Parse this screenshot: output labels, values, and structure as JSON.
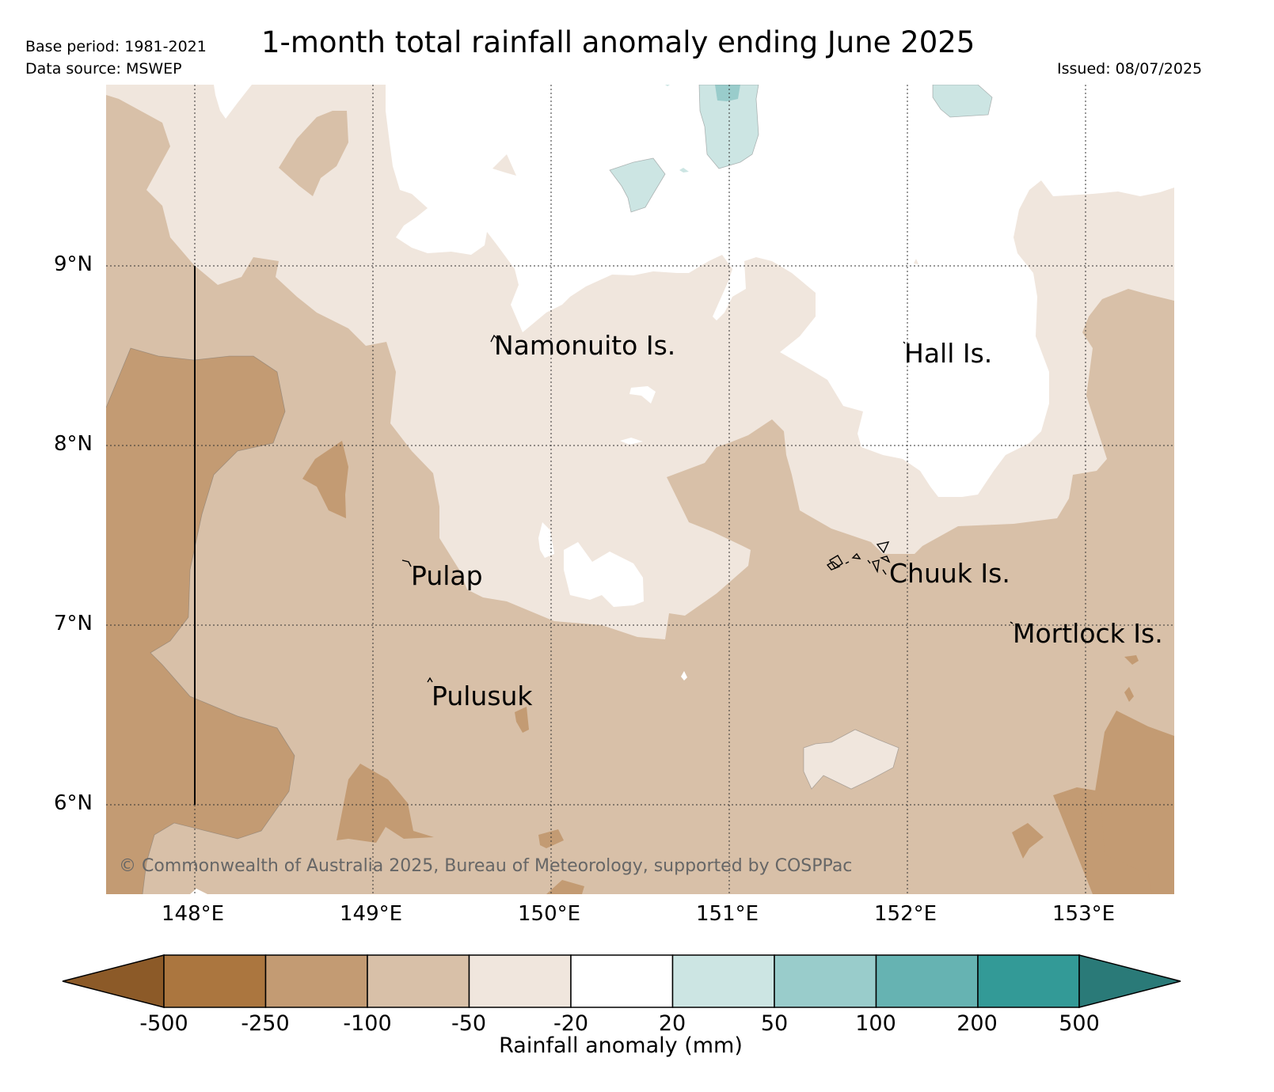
{
  "header": {
    "base_period": "Base period: 1981-2021",
    "data_source": "Data source: MSWEP",
    "title": "1-month total rainfall anomaly ending June 2025",
    "issued": "Issued: 08/07/2025"
  },
  "map": {
    "lon_labels": [
      "148°E",
      "149°E",
      "150°E",
      "151°E",
      "152°E",
      "153°E"
    ],
    "lat_labels": [
      "9°N",
      "8°N",
      "7°N",
      "6°N"
    ],
    "places": [
      {
        "name": "Namonuito Is."
      },
      {
        "name": "Hall Is."
      },
      {
        "name": "Pulap"
      },
      {
        "name": "Chuuk Is."
      },
      {
        "name": "Mortlock Is."
      },
      {
        "name": "Pulusuk"
      }
    ],
    "copyright": "© Commonwealth of Australia 2025, Bureau of Meteorology, supported by COSPPac"
  },
  "colorbar": {
    "label": "Rainfall anomaly (mm)",
    "ticks": [
      "-500",
      "-250",
      "-100",
      "-50",
      "-20",
      "20",
      "50",
      "100",
      "200",
      "500"
    ],
    "colors": {
      "below_-500": "#8c5a28",
      "-500_-250": "#ab763f",
      "-250_-100": "#c39b73",
      "-100_-50": "#d8c0a8",
      "-50_-20": "#f0e6dd",
      "-20_20": "#ffffff",
      "20_50": "#cce5e3",
      "50_100": "#99cccb",
      "100_200": "#66b3b2",
      "200_500": "#339a97",
      "above_500": "#2a7a78"
    }
  }
}
